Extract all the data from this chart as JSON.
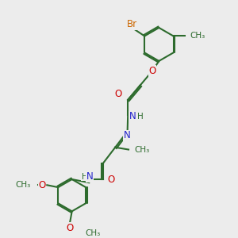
{
  "bg_color": "#ececec",
  "bond_color": "#2d6b2d",
  "N_color": "#2222cc",
  "O_color": "#cc0000",
  "Br_color": "#cc6600",
  "C_color": "#2d6b2d",
  "line_width": 1.5,
  "font_size": 8.5,
  "figsize": [
    3.0,
    3.0
  ],
  "dpi": 100,
  "xlim": [
    0,
    10
  ],
  "ylim": [
    0,
    10
  ]
}
